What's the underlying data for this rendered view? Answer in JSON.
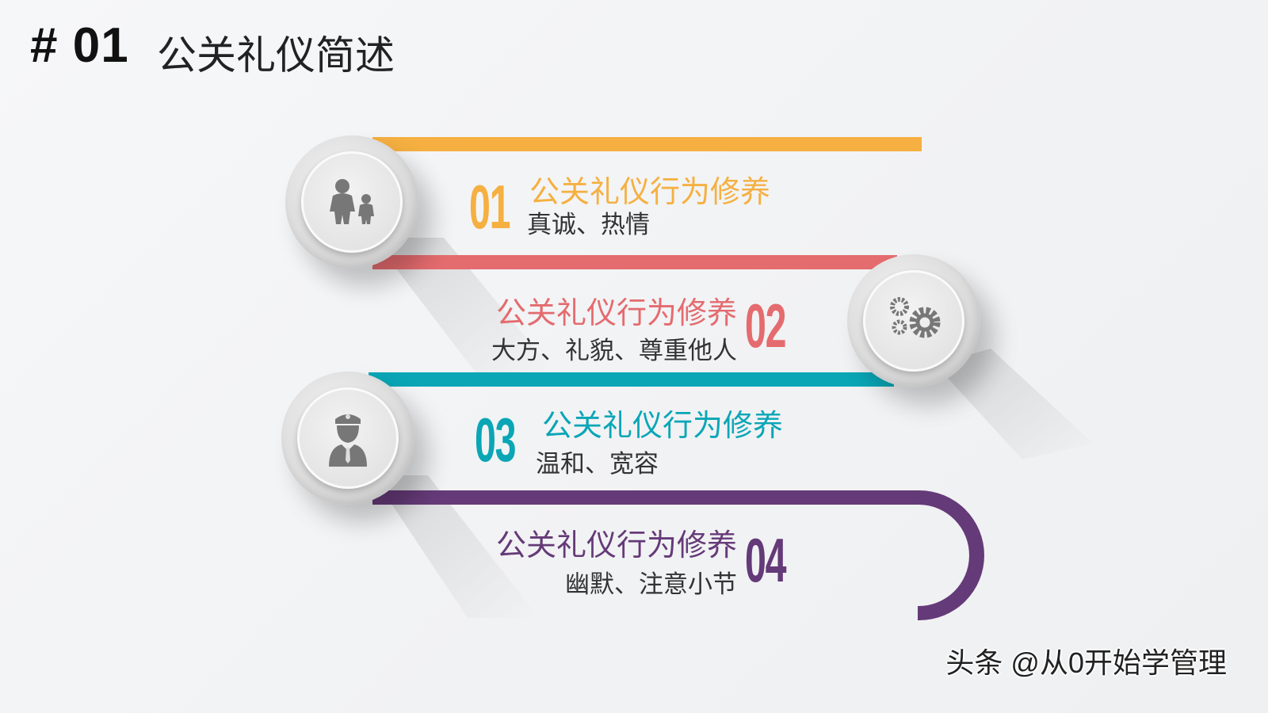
{
  "header": {
    "number": "# 01",
    "title": "公关礼仪简述"
  },
  "colors": {
    "orange": "#f5b041",
    "pink": "#e46b6e",
    "teal": "#0aa6b6",
    "purple": "#653a78"
  },
  "items": [
    {
      "number": "01",
      "title": "公关礼仪行为修养",
      "subtitle": "真诚、热情",
      "icon": "parent-child-icon"
    },
    {
      "number": "02",
      "title": "公关礼仪行为修养",
      "subtitle": "大方、礼貌、尊重他人",
      "icon": "gears-icon"
    },
    {
      "number": "03",
      "title": "公关礼仪行为修养",
      "subtitle": "温和、宽容",
      "icon": "officer-icon"
    },
    {
      "number": "04",
      "title": "公关礼仪行为修养",
      "subtitle": "幽默、注意小节"
    }
  ],
  "watermark": "头条 @从0开始学管理"
}
